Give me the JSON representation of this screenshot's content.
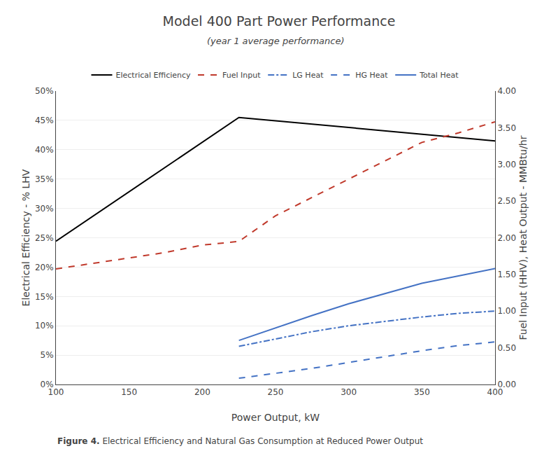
{
  "chart_data": {
    "type": "line",
    "title": "Model 400 Part Power Performance",
    "subtitle": "(year 1 average performance)",
    "x_label": "Power Output, kW",
    "y_label": "Electrical Efficiency - % LHV",
    "y2_label": "Fuel Input (HHV), Heat Output - MMBtu/hr",
    "annotations": [
      "Figure 4.",
      "Electrical Efficiency and Natural Gas Consumption at Reduced Power Output"
    ],
    "xlim": [
      100,
      400
    ],
    "xticks": [
      100,
      150,
      200,
      250,
      300,
      350,
      400
    ],
    "ylim": [
      0,
      0.5
    ],
    "yticks": [
      {
        "value": 0,
        "label": "0%"
      },
      {
        "value": 0.05,
        "label": "5%"
      },
      {
        "value": 0.1,
        "label": "10%"
      },
      {
        "value": 0.15,
        "label": "15%"
      },
      {
        "value": 0.2,
        "label": "20%"
      },
      {
        "value": 0.25,
        "label": "25%"
      },
      {
        "value": 0.3,
        "label": "30%"
      },
      {
        "value": 0.35,
        "label": "35%"
      },
      {
        "value": 0.4,
        "label": "40%"
      },
      {
        "value": 0.45,
        "label": "45%"
      },
      {
        "value": 0.5,
        "label": "50%"
      }
    ],
    "y2lim": [
      0.0,
      4.0
    ],
    "y2ticks": [
      {
        "value": 0.0,
        "label": "0.00"
      },
      {
        "value": 0.5,
        "label": "0.50"
      },
      {
        "value": 1.0,
        "label": "1.00"
      },
      {
        "value": 1.5,
        "label": "1.50"
      },
      {
        "value": 2.0,
        "label": "2.00"
      },
      {
        "value": 2.5,
        "label": "2.50"
      },
      {
        "value": 3.0,
        "label": "3.00"
      },
      {
        "value": 3.5,
        "label": "3.50"
      },
      {
        "value": 4.0,
        "label": "4.00"
      }
    ],
    "grid": true,
    "legend": "top",
    "series": [
      {
        "name": "Electrical Efficiency",
        "color": "#000000",
        "line_style": "solid",
        "axis": "y",
        "x": [
          100,
          225,
          400
        ],
        "values": [
          0.244,
          0.455,
          0.415
        ]
      },
      {
        "name": "Fuel Input",
        "color": "#c0392b",
        "line_style": "dash",
        "axis": "y2",
        "x": [
          100,
          125,
          150,
          175,
          200,
          225,
          250,
          275,
          300,
          325,
          350,
          375,
          400
        ],
        "values": [
          1.575,
          1.65,
          1.72,
          1.8,
          1.9,
          1.95,
          2.3,
          2.55,
          2.8,
          3.05,
          3.3,
          3.43,
          3.58
        ]
      },
      {
        "name": "LG Heat",
        "color": "#4472c4",
        "line_style": "dashdot",
        "axis": "y2",
        "x": [
          225,
          250,
          275,
          300,
          325,
          350,
          375,
          400
        ],
        "values": [
          0.52,
          0.62,
          0.72,
          0.8,
          0.86,
          0.92,
          0.97,
          1.0
        ]
      },
      {
        "name": "HG Heat",
        "color": "#4472c4",
        "line_style": "dash",
        "axis": "y2",
        "x": [
          225,
          250,
          275,
          300,
          325,
          350,
          375,
          400
        ],
        "values": [
          0.085,
          0.15,
          0.22,
          0.3,
          0.38,
          0.46,
          0.53,
          0.58
        ]
      },
      {
        "name": "Total Heat",
        "color": "#4472c4",
        "line_style": "solid",
        "axis": "y2",
        "x": [
          225,
          250,
          275,
          300,
          325,
          350,
          375,
          400
        ],
        "values": [
          0.6,
          0.77,
          0.94,
          1.1,
          1.24,
          1.38,
          1.48,
          1.58
        ]
      }
    ]
  }
}
